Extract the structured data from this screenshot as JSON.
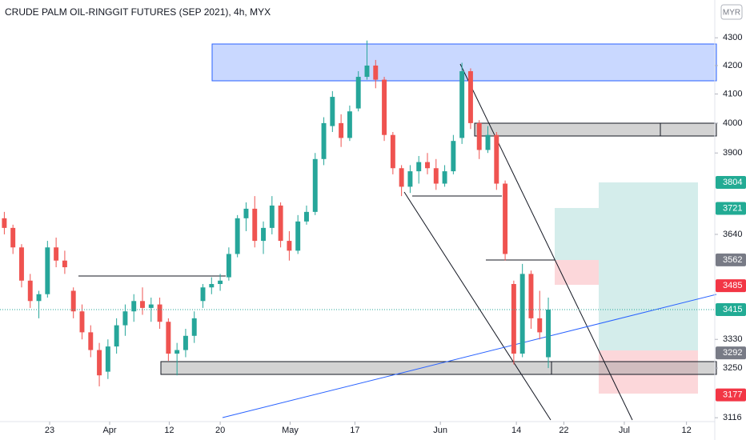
{
  "chart_data": {
    "type": "candlestick",
    "title": "CRUDE PALM OIL-RINGGIT FUTURES (SEP 2021), 4h, MYX",
    "currency": "MYR",
    "log_scale": true,
    "grid": false,
    "up_color": "#26a69a",
    "down_color": "#ef5350",
    "open": [
      3690,
      3660,
      3600,
      3500,
      3440,
      3460,
      3600,
      3560,
      3470,
      3410,
      3350,
      3300,
      3240,
      3310,
      3370,
      3410,
      3440,
      3420,
      3430,
      3380,
      3290,
      3300,
      3340,
      3440,
      3480,
      3490,
      3510,
      3580,
      3690,
      3720,
      3620,
      3660,
      3730,
      3620,
      3590,
      3680,
      3710,
      3880,
      3990,
      4000,
      3950,
      4050,
      4160,
      4200,
      4150,
      3960,
      3850,
      3790,
      3840,
      3870,
      3850,
      3800,
      3840,
      3950,
      4180,
      4000,
      3910,
      3960,
      3800,
      3490,
      3290,
      3520,
      3390,
      3280
    ],
    "high": [
      3710,
      3670,
      3610,
      3520,
      3470,
      3620,
      3630,
      3590,
      3480,
      3430,
      3370,
      3320,
      3330,
      3390,
      3430,
      3460,
      3480,
      3450,
      3450,
      3390,
      3320,
      3360,
      3410,
      3490,
      3510,
      3520,
      3600,
      3700,
      3740,
      3760,
      3680,
      3760,
      3740,
      3650,
      3700,
      3730,
      3900,
      4020,
      4110,
      4030,
      4060,
      4180,
      4290,
      4220,
      4160,
      3970,
      3860,
      3860,
      3890,
      3900,
      3880,
      3860,
      3960,
      4210,
      4190,
      4010,
      3990,
      3970,
      3810,
      3500,
      3550,
      3530,
      3470,
      3450
    ],
    "low": [
      3640,
      3580,
      3480,
      3420,
      3390,
      3450,
      3540,
      3520,
      3390,
      3330,
      3280,
      3200,
      3220,
      3290,
      3340,
      3380,
      3400,
      3380,
      3360,
      3270,
      3230,
      3280,
      3320,
      3420,
      3460,
      3470,
      3500,
      3570,
      3650,
      3600,
      3580,
      3640,
      3600,
      3560,
      3580,
      3670,
      3700,
      3860,
      3970,
      3920,
      3940,
      4040,
      4150,
      4120,
      3940,
      3830,
      3760,
      3770,
      3800,
      3830,
      3780,
      3790,
      3830,
      3930,
      3980,
      3880,
      3900,
      3780,
      3560,
      3260,
      3280,
      3360,
      3330,
      3250
    ],
    "close": [
      3660,
      3600,
      3500,
      3440,
      3460,
      3600,
      3560,
      3540,
      3410,
      3350,
      3300,
      3230,
      3310,
      3370,
      3410,
      3440,
      3420,
      3430,
      3380,
      3290,
      3300,
      3340,
      3390,
      3480,
      3490,
      3500,
      3580,
      3690,
      3720,
      3620,
      3660,
      3730,
      3620,
      3590,
      3680,
      3710,
      3880,
      4000,
      4090,
      3950,
      4040,
      4160,
      4200,
      4150,
      3960,
      3850,
      3790,
      3840,
      3870,
      3850,
      3800,
      3840,
      3940,
      4180,
      4000,
      3910,
      3960,
      3800,
      3580,
      3290,
      3520,
      3390,
      3350,
      3415
    ],
    "xlim": [
      -0.5,
      82
    ],
    "xticks": [
      {
        "value": 5.25,
        "label": "23"
      },
      {
        "value": 12.2,
        "label": "Apr"
      },
      {
        "value": 19.1,
        "label": "12"
      },
      {
        "value": 25,
        "label": "20"
      },
      {
        "value": 33.1,
        "label": "May"
      },
      {
        "value": 40.6,
        "label": "17"
      },
      {
        "value": 50.5,
        "label": "Jun"
      },
      {
        "value": 59.3,
        "label": "14"
      },
      {
        "value": 64.8,
        "label": "22"
      },
      {
        "value": 71.8,
        "label": "Jul"
      },
      {
        "value": 79,
        "label": "12"
      }
    ],
    "ylim": [
      3110,
      4440
    ],
    "yticks": [
      3116,
      3250,
      3330,
      3640,
      3900,
      4000,
      4100,
      4200,
      4300
    ],
    "price_labels": {
      "values": [
        3804,
        3721,
        3562,
        3485,
        3415,
        3292,
        3177
      ],
      "colors": [
        "#22ab94",
        "#22ab94",
        "#787b86",
        "#f23645",
        "#22ab94",
        "#787b86",
        "#f23645"
      ]
    }
  }
}
